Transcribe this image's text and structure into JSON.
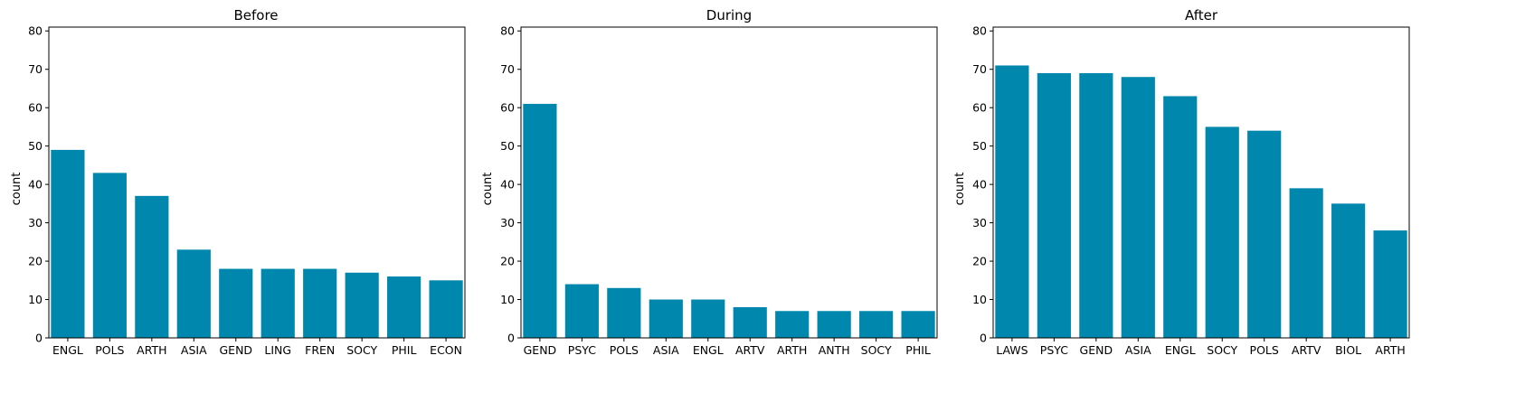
{
  "colors": {
    "bar": "#0087ad",
    "axis": "#000000",
    "background": "#ffffff"
  },
  "chart_data": [
    {
      "type": "bar",
      "title": "Before",
      "ylabel": "count",
      "xlabel": "",
      "ylim": [
        0,
        81
      ],
      "yticks": [
        0,
        10,
        20,
        30,
        40,
        50,
        60,
        70,
        80
      ],
      "grid": false,
      "categories": [
        "ENGL",
        "POLS",
        "ARTH",
        "ASIA",
        "GEND",
        "LING",
        "FREN",
        "SOCY",
        "PHIL",
        "ECON"
      ],
      "values": [
        49,
        43,
        37,
        23,
        18,
        18,
        18,
        17,
        16,
        15
      ]
    },
    {
      "type": "bar",
      "title": "During",
      "ylabel": "count",
      "xlabel": "",
      "ylim": [
        0,
        81
      ],
      "yticks": [
        0,
        10,
        20,
        30,
        40,
        50,
        60,
        70,
        80
      ],
      "grid": false,
      "categories": [
        "GEND",
        "PSYC",
        "POLS",
        "ASIA",
        "ENGL",
        "ARTV",
        "ARTH",
        "ANTH",
        "SOCY",
        "PHIL"
      ],
      "values": [
        61,
        14,
        13,
        10,
        10,
        8,
        7,
        7,
        7,
        7
      ]
    },
    {
      "type": "bar",
      "title": "After",
      "ylabel": "count",
      "xlabel": "",
      "ylim": [
        0,
        81
      ],
      "yticks": [
        0,
        10,
        20,
        30,
        40,
        50,
        60,
        70,
        80
      ],
      "grid": false,
      "categories": [
        "LAWS",
        "PSYC",
        "GEND",
        "ASIA",
        "ENGL",
        "SOCY",
        "POLS",
        "ARTV",
        "BIOL",
        "ARTH"
      ],
      "values": [
        71,
        69,
        69,
        68,
        63,
        55,
        54,
        39,
        35,
        28
      ]
    }
  ]
}
